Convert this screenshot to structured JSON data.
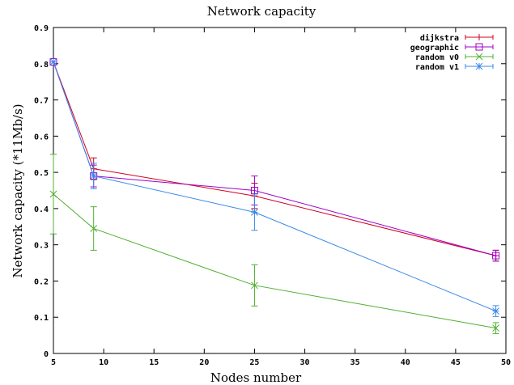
{
  "chart_data": {
    "type": "line",
    "title": "Network capacity",
    "xlabel": "Nodes number",
    "ylabel": "Network capacity (*11Mb/s)",
    "xlim": [
      5,
      50
    ],
    "ylim": [
      0,
      0.9
    ],
    "xticks": [
      5,
      10,
      15,
      20,
      25,
      30,
      35,
      40,
      45,
      50
    ],
    "yticks": [
      0,
      0.1,
      0.2,
      0.3,
      0.4,
      0.5,
      0.6,
      0.7,
      0.8,
      0.9
    ],
    "xtick_labels": [
      "5",
      "10",
      "15",
      "20",
      "25",
      "30",
      "35",
      "40",
      "45",
      "50"
    ],
    "ytick_labels": [
      "0",
      "0.1",
      "0.2",
      "0.3",
      "0.4",
      "0.5",
      "0.6",
      "0.7",
      "0.8",
      "0.9"
    ],
    "legend_position": "top-right",
    "grid": false,
    "series": [
      {
        "name": "dijkstra",
        "color": "#d00020",
        "marker": "plus",
        "points": [
          {
            "x": 5,
            "y": 0.805,
            "err": 0.0
          },
          {
            "x": 9,
            "y": 0.51,
            "err": 0.03
          },
          {
            "x": 25,
            "y": 0.435,
            "err": 0.035
          },
          {
            "x": 49,
            "y": 0.27,
            "err": 0.015
          }
        ]
      },
      {
        "name": "geographic",
        "color": "#a000c8",
        "marker": "square",
        "points": [
          {
            "x": 5,
            "y": 0.805,
            "err": 0.0
          },
          {
            "x": 9,
            "y": 0.49,
            "err": 0.03
          },
          {
            "x": 25,
            "y": 0.45,
            "err": 0.04
          },
          {
            "x": 49,
            "y": 0.27,
            "err": 0.015
          }
        ]
      },
      {
        "name": "random v0",
        "color": "#50b030",
        "marker": "cross",
        "points": [
          {
            "x": 5,
            "y": 0.44,
            "err": 0.11
          },
          {
            "x": 9,
            "y": 0.345,
            "err": 0.06
          },
          {
            "x": 25,
            "y": 0.188,
            "err": 0.057
          },
          {
            "x": 49,
            "y": 0.07,
            "err": 0.015
          }
        ]
      },
      {
        "name": "random v1",
        "color": "#3a8ae8",
        "marker": "star",
        "points": [
          {
            "x": 5,
            "y": 0.805,
            "err": 0.0
          },
          {
            "x": 9,
            "y": 0.49,
            "err": 0.035
          },
          {
            "x": 25,
            "y": 0.39,
            "err": 0.05
          },
          {
            "x": 49,
            "y": 0.117,
            "err": 0.015
          }
        ]
      }
    ]
  }
}
